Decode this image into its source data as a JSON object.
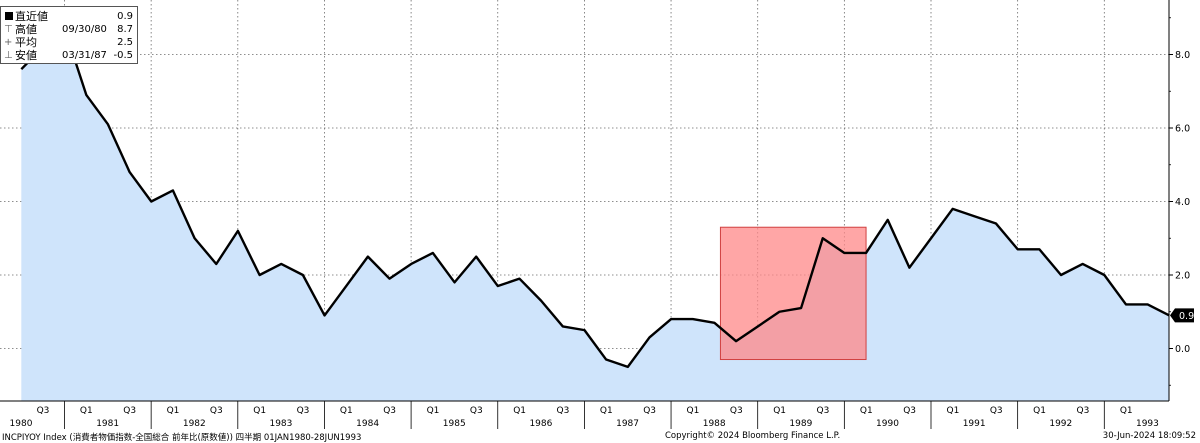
{
  "chart_data": {
    "type": "line",
    "frequency": "quarterly",
    "ylim": [
      -1.3,
      9.6
    ],
    "y_ticks": [
      0.0,
      2.0,
      4.0,
      6.0,
      8.0
    ],
    "y_tick_labels": [
      "0.0",
      "2.0",
      "4.0",
      "6.0",
      "8.0"
    ],
    "grid": "on",
    "area_fill": true,
    "line_color": "#000000",
    "area_color": "#cfe4fb",
    "highlight_color": "#ff8888",
    "highlight_period": {
      "start": "1988-03-31",
      "end": "1989-12-31"
    },
    "last_value_label": "0.9",
    "x": [
      "1980-03-31",
      "1980-06-30",
      "1980-09-30",
      "1980-12-31",
      "1981-03-31",
      "1981-06-30",
      "1981-09-30",
      "1981-12-31",
      "1982-03-31",
      "1982-06-30",
      "1982-09-30",
      "1982-12-31",
      "1983-03-31",
      "1983-06-30",
      "1983-09-30",
      "1983-12-31",
      "1984-03-31",
      "1984-06-30",
      "1984-09-30",
      "1984-12-31",
      "1985-03-31",
      "1985-06-30",
      "1985-09-30",
      "1985-12-31",
      "1986-03-31",
      "1986-06-30",
      "1986-09-30",
      "1986-12-31",
      "1987-03-31",
      "1987-06-30",
      "1987-09-30",
      "1987-12-31",
      "1988-03-31",
      "1988-06-30",
      "1988-09-30",
      "1988-12-31",
      "1989-03-31",
      "1989-06-30",
      "1989-09-30",
      "1989-12-31",
      "1990-03-31",
      "1990-06-30",
      "1990-09-30",
      "1990-12-31",
      "1991-03-31",
      "1991-06-30",
      "1991-09-30",
      "1991-12-31",
      "1992-03-31",
      "1992-06-30",
      "1992-09-30",
      "1992-12-31",
      "1993-03-31",
      "1993-06-30"
    ],
    "values": [
      7.6,
      8.2,
      8.7,
      6.9,
      6.1,
      4.8,
      4.0,
      4.3,
      3.0,
      2.3,
      3.2,
      2.0,
      2.3,
      2.0,
      0.9,
      1.7,
      2.5,
      1.9,
      2.3,
      2.6,
      1.8,
      2.5,
      1.7,
      1.9,
      1.3,
      0.6,
      0.5,
      -0.3,
      -0.5,
      0.3,
      0.8,
      0.8,
      0.7,
      0.2,
      0.6,
      1.0,
      1.1,
      3.0,
      2.6,
      2.6,
      3.5,
      2.2,
      3.0,
      3.8,
      3.6,
      3.4,
      2.7,
      2.7,
      2.0,
      2.3,
      2.0,
      1.2,
      1.2,
      0.9
    ],
    "x_quarter_labels": [
      "Q3",
      "Q1",
      "Q3",
      "Q1",
      "Q3",
      "Q1",
      "Q3",
      "Q1",
      "Q3",
      "Q1",
      "Q3",
      "Q1",
      "Q3",
      "Q1",
      "Q3",
      "Q1",
      "Q3",
      "Q1",
      "Q3",
      "Q1",
      "Q3",
      "Q1",
      "Q3",
      "Q1",
      "Q3",
      "Q1",
      "Q3",
      "Q1"
    ],
    "x_year_labels": [
      "1980",
      "1981",
      "1982",
      "1983",
      "1984",
      "1985",
      "1986",
      "1987",
      "1988",
      "1989",
      "1990",
      "1991",
      "1992",
      "1993"
    ]
  },
  "legend": {
    "last": {
      "label": "直近値",
      "date": "",
      "value": "0.9"
    },
    "high": {
      "label": "高値",
      "date": "09/30/80",
      "value": "8.7"
    },
    "avg": {
      "label": "平均",
      "date": "",
      "value": "2.5"
    },
    "low": {
      "label": "安値",
      "date": "03/31/87",
      "value": "-0.5"
    }
  },
  "footer": {
    "left": "INCPIYOY Index (消費者物価指数-全国総合 前年比(原数値)) 四半期 01JAN1980-28JUN1993",
    "center": "Copyright© 2024 Bloomberg Finance L.P.",
    "right": "30-Jun-2024 18:09:52"
  }
}
